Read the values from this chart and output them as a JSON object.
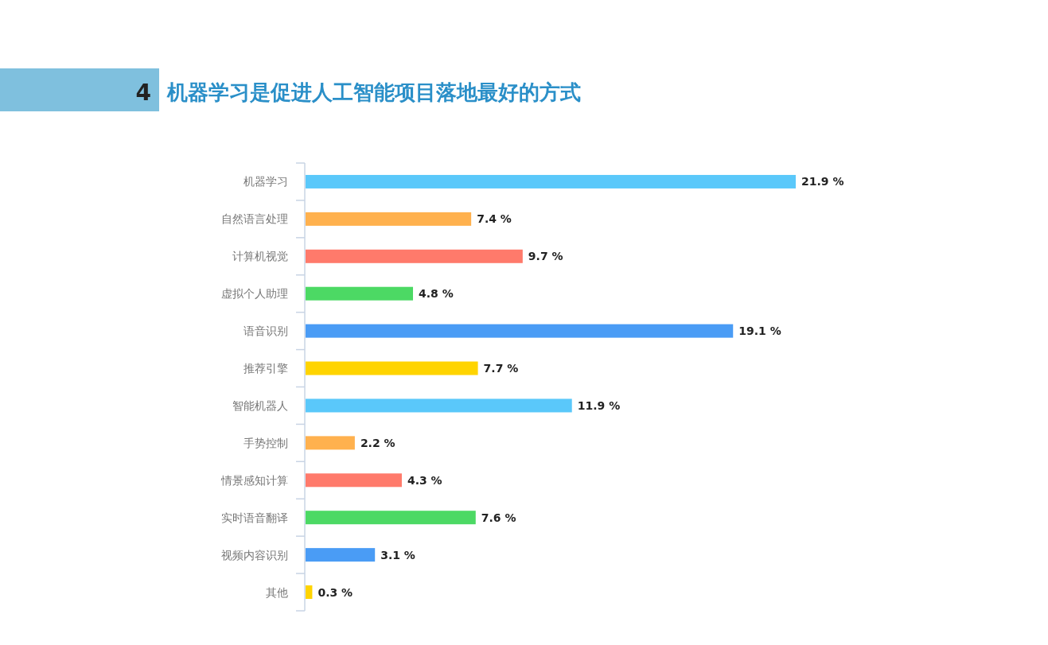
{
  "chart_data": {
    "type": "bar",
    "orientation": "horizontal",
    "title": "机器学习是促进人工智能项目落地最好的方式",
    "annotations": [
      "4"
    ],
    "categories": [
      "机器学习",
      "自然语言处理",
      "计算机视觉",
      "虚拟个人助理",
      "语音识别",
      "推荐引擎",
      "智能机器人",
      "手势控制",
      "情景感知计算",
      "实时语音翻译",
      "视频内容识别",
      "其他"
    ],
    "values": [
      21.9,
      7.4,
      9.7,
      4.8,
      19.1,
      7.7,
      11.9,
      2.2,
      4.3,
      7.6,
      3.1,
      0.3
    ],
    "value_labels": [
      "21.9 %",
      "7.4 %",
      "9.7 %",
      "4.8 %",
      "19.1 %",
      "7.7 %",
      "11.9 %",
      "2.2 %",
      "4.3 %",
      "7.6 %",
      "3.1 %",
      "0.3 %"
    ],
    "colors": [
      "#5ac8fa",
      "#ffb14e",
      "#ff7a6b",
      "#4cd964",
      "#4a9cf5",
      "#ffd400",
      "#5ac8fa",
      "#ffb14e",
      "#ff7a6b",
      "#4cd964",
      "#4a9cf5",
      "#ffd400"
    ]
  }
}
